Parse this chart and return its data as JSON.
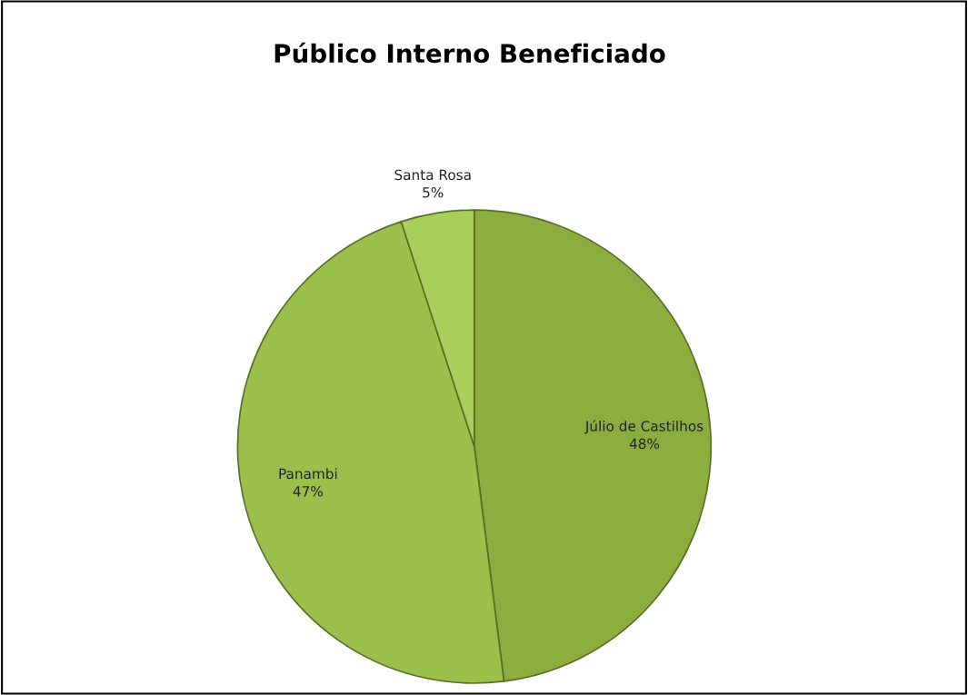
{
  "chart_data": {
    "type": "pie",
    "title": "Público Interno Beneficiado",
    "categories": [
      "Júlio de Castilhos",
      "Panambi",
      "Santa Rosa"
    ],
    "values": [
      48,
      47,
      5
    ],
    "value_labels": [
      "48%",
      "47%",
      "5%"
    ],
    "colors": [
      "#8cae3f",
      "#9bbf4b",
      "#a8cf5a"
    ],
    "legend": false
  }
}
